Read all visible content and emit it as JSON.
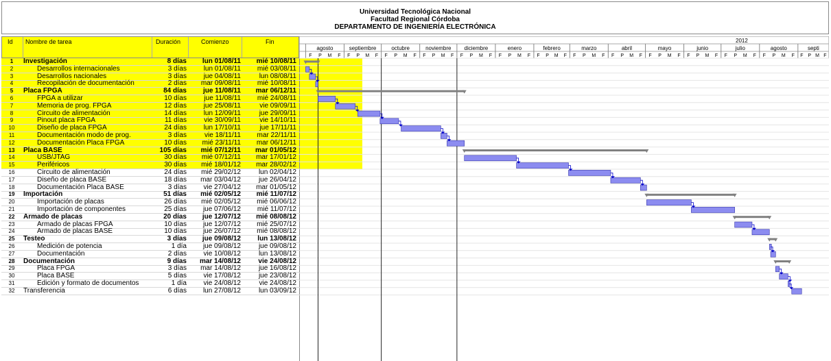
{
  "header": {
    "line1": "Universidad Tecnológica Nacional",
    "line2": "Facultad Regional Córdoba",
    "line3": "DEPARTAMENTO DE INGENIERÍA ELECTRÓNICA"
  },
  "columns": {
    "id": "Id",
    "name": "Nombre de tarea",
    "duration": "Duración",
    "start": "Comienzo",
    "finish": "Fin"
  },
  "timeline": {
    "year": "2012",
    "months": [
      "agosto",
      "septiembre",
      "octubre",
      "noviembre",
      "diciembre",
      "enero",
      "febrero",
      "marzo",
      "abril",
      "mayo",
      "junio",
      "julio",
      "agosto",
      "septi"
    ],
    "subscale": [
      "F",
      "P",
      "M",
      "F"
    ]
  },
  "tasks": [
    {
      "id": "1",
      "name": "Investigación",
      "dur": "8 días",
      "start": "lun 01/08/11",
      "fin": "mié 10/08/11",
      "summary": true,
      "indent": 0
    },
    {
      "id": "2",
      "name": "Desarrollos internacionales",
      "dur": "3 días",
      "start": "lun 01/08/11",
      "fin": "mié 03/08/11",
      "summary": false,
      "indent": 1
    },
    {
      "id": "3",
      "name": "Desarrollos nacionales",
      "dur": "3 días",
      "start": "jue 04/08/11",
      "fin": "lun 08/08/11",
      "summary": false,
      "indent": 1
    },
    {
      "id": "4",
      "name": "Recopilación de documentación",
      "dur": "2 días",
      "start": "mar 09/08/11",
      "fin": "mié 10/08/11",
      "summary": false,
      "indent": 1
    },
    {
      "id": "5",
      "name": "Placa FPGA",
      "dur": "84 días",
      "start": "jue 11/08/11",
      "fin": "mar 06/12/11",
      "summary": true,
      "indent": 0
    },
    {
      "id": "6",
      "name": "FPGA a utilizar",
      "dur": "10 días",
      "start": "jue 11/08/11",
      "fin": "mié 24/08/11",
      "summary": false,
      "indent": 1
    },
    {
      "id": "7",
      "name": "Memoria de prog. FPGA",
      "dur": "12 días",
      "start": "jue 25/08/11",
      "fin": "vie 09/09/11",
      "summary": false,
      "indent": 1
    },
    {
      "id": "8",
      "name": "Circuito de alimentación",
      "dur": "14 días",
      "start": "lun 12/09/11",
      "fin": "jue 29/09/11",
      "summary": false,
      "indent": 1
    },
    {
      "id": "9",
      "name": "Pinout placa FPGA",
      "dur": "11 días",
      "start": "vie 30/09/11",
      "fin": "vie 14/10/11",
      "summary": false,
      "indent": 1
    },
    {
      "id": "10",
      "name": "Diseño de placa FPGA",
      "dur": "24 días",
      "start": "lun 17/10/11",
      "fin": "jue 17/11/11",
      "summary": false,
      "indent": 1
    },
    {
      "id": "11",
      "name": "Documentación modo de prog.",
      "dur": "3 días",
      "start": "vie 18/11/11",
      "fin": "mar 22/11/11",
      "summary": false,
      "indent": 1
    },
    {
      "id": "12",
      "name": "Documentación Placa FPGA",
      "dur": "10 días",
      "start": "mié 23/11/11",
      "fin": "mar 06/12/11",
      "summary": false,
      "indent": 1
    },
    {
      "id": "13",
      "name": "Placa BASE",
      "dur": "105 días",
      "start": "mié 07/12/11",
      "fin": "mar 01/05/12",
      "summary": true,
      "indent": 0
    },
    {
      "id": "14",
      "name": "USB/JTAG",
      "dur": "30 días",
      "start": "mié 07/12/11",
      "fin": "mar 17/01/12",
      "summary": false,
      "indent": 1
    },
    {
      "id": "15",
      "name": "Periféricos",
      "dur": "30 días",
      "start": "mié 18/01/12",
      "fin": "mar 28/02/12",
      "summary": false,
      "indent": 1
    },
    {
      "id": "16",
      "name": "Circuito de alimentación",
      "dur": "24 días",
      "start": "mié 29/02/12",
      "fin": "lun 02/04/12",
      "summary": false,
      "indent": 1
    },
    {
      "id": "17",
      "name": "Diseño de placa BASE",
      "dur": "18 días",
      "start": "mar 03/04/12",
      "fin": "jue 26/04/12",
      "summary": false,
      "indent": 1
    },
    {
      "id": "18",
      "name": "Documentación Placa BASE",
      "dur": "3 días",
      "start": "vie 27/04/12",
      "fin": "mar 01/05/12",
      "summary": false,
      "indent": 1
    },
    {
      "id": "19",
      "name": "Importación",
      "dur": "51 días",
      "start": "mié 02/05/12",
      "fin": "mié 11/07/12",
      "summary": true,
      "indent": 0
    },
    {
      "id": "20",
      "name": "Importación de placas",
      "dur": "26 días",
      "start": "mié 02/05/12",
      "fin": "mié 06/06/12",
      "summary": false,
      "indent": 1
    },
    {
      "id": "21",
      "name": "Importación de componentes",
      "dur": "25 días",
      "start": "jue 07/06/12",
      "fin": "mié 11/07/12",
      "summary": false,
      "indent": 1
    },
    {
      "id": "22",
      "name": "Armado de placas",
      "dur": "20 días",
      "start": "jue 12/07/12",
      "fin": "mié 08/08/12",
      "summary": true,
      "indent": 0
    },
    {
      "id": "23",
      "name": "Armado de placas FPGA",
      "dur": "10 días",
      "start": "jue 12/07/12",
      "fin": "mié 25/07/12",
      "summary": false,
      "indent": 1
    },
    {
      "id": "24",
      "name": "Armado de placas BASE",
      "dur": "10 días",
      "start": "jue 26/07/12",
      "fin": "mié 08/08/12",
      "summary": false,
      "indent": 1
    },
    {
      "id": "25",
      "name": "Testeo",
      "dur": "3 días",
      "start": "jue 09/08/12",
      "fin": "lun 13/08/12",
      "summary": true,
      "indent": 0
    },
    {
      "id": "26",
      "name": "Medición de potencia",
      "dur": "1 día",
      "start": "jue 09/08/12",
      "fin": "jue 09/08/12",
      "summary": false,
      "indent": 1
    },
    {
      "id": "27",
      "name": "Documentación",
      "dur": "2 días",
      "start": "vie 10/08/12",
      "fin": "lun 13/08/12",
      "summary": false,
      "indent": 1
    },
    {
      "id": "28",
      "name": "Documentación",
      "dur": "9 días",
      "start": "mar 14/08/12",
      "fin": "vie 24/08/12",
      "summary": true,
      "indent": 0
    },
    {
      "id": "29",
      "name": "Placa FPGA",
      "dur": "3 días",
      "start": "mar 14/08/12",
      "fin": "jue 16/08/12",
      "summary": false,
      "indent": 1
    },
    {
      "id": "30",
      "name": "Placa BASE",
      "dur": "5 días",
      "start": "vie 17/08/12",
      "fin": "jue 23/08/12",
      "summary": false,
      "indent": 1
    },
    {
      "id": "31",
      "name": "Edición y formato de documentos",
      "dur": "1 día",
      "start": "vie 24/08/12",
      "fin": "vie 24/08/12",
      "summary": false,
      "indent": 1
    },
    {
      "id": "32",
      "name": "Transferencia",
      "dur": "6 días",
      "start": "lun 27/08/12",
      "fin": "lun 03/09/12",
      "summary": false,
      "indent": 0
    }
  ],
  "colors": {
    "highlight": "#ffff00",
    "task_bar": "#8c8cf0",
    "summary_bar": "#808080",
    "link": "#0000cc"
  }
}
